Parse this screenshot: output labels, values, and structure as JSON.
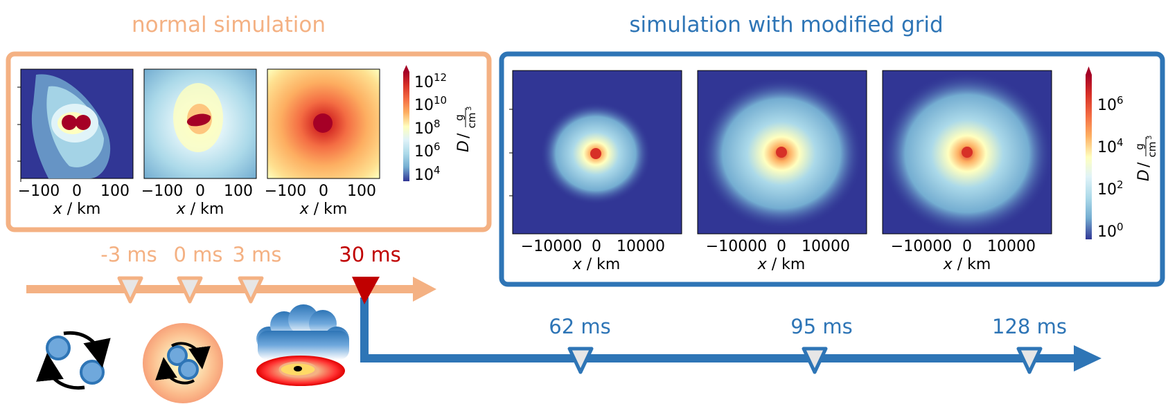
{
  "colors": {
    "normal": "#f4b183",
    "modified": "#2e75b6",
    "highlight": "#c00000",
    "panel_bg": "#313695",
    "star_blue": "#6fa8dc"
  },
  "normal": {
    "title": "normal simulation",
    "panels": [
      {
        "xticks": [
          "−100",
          "0",
          "100"
        ],
        "xlabel_var": "x",
        "xlabel_unit": " / km"
      },
      {
        "xticks": [
          "−100",
          "0",
          "100"
        ],
        "xlabel_var": "x",
        "xlabel_unit": " / km"
      },
      {
        "xticks": [
          "−100",
          "0",
          "100"
        ],
        "xlabel_var": "x",
        "xlabel_unit": " / km"
      }
    ],
    "colorbar": {
      "ticks": [
        "10",
        "10",
        "10",
        "10",
        "10"
      ],
      "exps": [
        "12",
        "10",
        "8",
        "6",
        "4"
      ],
      "label_var": "D",
      "label_num": "g",
      "label_den": "cm",
      "label_den_exp": "3"
    }
  },
  "modified": {
    "title": "simulation with modified grid",
    "panels": [
      {
        "xticks": [
          "−10000",
          "0",
          "10000"
        ],
        "xlabel_var": "x",
        "xlabel_unit": " / km"
      },
      {
        "xticks": [
          "−10000",
          "0",
          "10000"
        ],
        "xlabel_var": "x",
        "xlabel_unit": " / km"
      },
      {
        "xticks": [
          "−10000",
          "0",
          "10000"
        ],
        "xlabel_var": "x",
        "xlabel_unit": " / km"
      }
    ],
    "colorbar": {
      "ticks": [
        "10",
        "10",
        "10",
        "10"
      ],
      "exps": [
        "6",
        "4",
        "2",
        "0"
      ],
      "label_var": "D",
      "label_num": "g",
      "label_den": "cm",
      "label_den_exp": "3"
    }
  },
  "timeline_normal": {
    "markers": [
      "-3 ms",
      "0 ms",
      "3 ms"
    ],
    "highlight": "30 ms"
  },
  "timeline_modified": {
    "markers": [
      "62 ms",
      "95 ms",
      "128 ms"
    ]
  }
}
